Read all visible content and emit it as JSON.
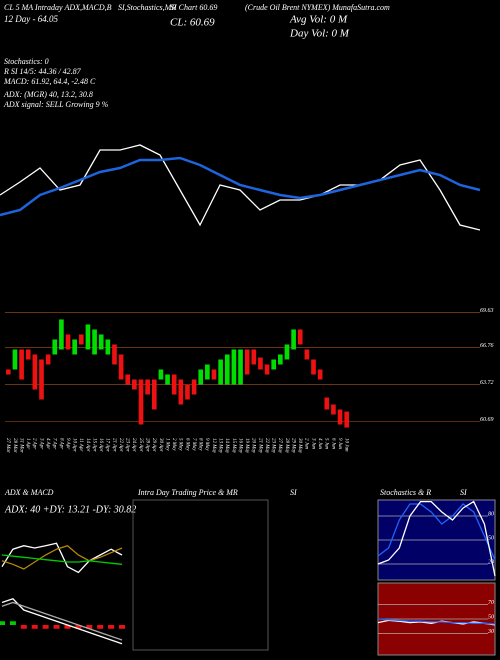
{
  "chart_data": [
    {
      "type": "line",
      "annotations": [
        "CL  5 MA  Intraday  ADX,MACD,B",
        "SI,Stochastics,MR",
        "SI Chart  60.69",
        "(Crude Oil Brent NYMEX) MunafaSutra.com",
        "12 Day  - 64.05",
        "CL: 60.69",
        "Avg Vol: 0   M",
        "Day Vol: 0   M",
        "Stochastics: 0",
        "R       SI 14/5: 44.36  / 42.87",
        "MACD: 61.92, 64.4, -2.48   C",
        "ADX:                (MGR) 40, 13.2, 30.8",
        "ADX  signal: SELL  Growing 9 %"
      ],
      "ylim": [
        0,
        300
      ],
      "series": [
        {
          "color": "#ffffff",
          "values": [
            105,
            118,
            132,
            110,
            115,
            150,
            150,
            155,
            145,
            110,
            75,
            115,
            110,
            90,
            100,
            100,
            105,
            115,
            115,
            120,
            135,
            140,
            110,
            75,
            70
          ]
        },
        {
          "color": "#1e64dc",
          "values": [
            85,
            90,
            105,
            112,
            120,
            128,
            132,
            140,
            140,
            142,
            135,
            125,
            115,
            110,
            105,
            102,
            105,
            110,
            115,
            120,
            125,
            130,
            125,
            115,
            110
          ]
        }
      ]
    },
    {
      "type": "candle",
      "categories": [
        "27 Mar",
        "28 Mar",
        "31 Mar",
        "1 Apr",
        "2 Apr",
        "3 Apr",
        "4 Apr",
        "7 Apr",
        "8 Apr",
        "9 Apr",
        "10 Apr",
        "11 Apr",
        "14 Apr",
        "15 Apr",
        "16 Apr",
        "17 Apr",
        "21 Apr",
        "22 Apr",
        "23 Apr",
        "24 Apr",
        "25 Apr",
        "28 Apr",
        "29 Apr",
        "30 Apr",
        "1 May",
        "2 May",
        "5 May",
        "6 May",
        "7 May",
        "8 May",
        "9 May",
        "12 May",
        "13 May",
        "14 May",
        "15 May",
        "16 May",
        "19 May",
        "20 May",
        "21 May",
        "22 May",
        "23 May",
        "27 May",
        "28 May",
        "29 May",
        "30 May",
        "2 Jun",
        "3 Jun",
        "4 Jun",
        "5 Jun",
        "6 Jun",
        "9 Jun",
        "10 Jun"
      ],
      "open": [
        64.96,
        64.96,
        66.6,
        66.6,
        66.19,
        65.78,
        66.19,
        66.19,
        66.6,
        67.83,
        66.19,
        67.83,
        66.6,
        66.19,
        66.6,
        66.19,
        67.01,
        66.19,
        64.55,
        64.14,
        64.14,
        64.14,
        64.14,
        64.14,
        63.73,
        64.55,
        64.14,
        63.73,
        64.14,
        63.73,
        64.14,
        64.96,
        63.73,
        63.73,
        63.73,
        63.73,
        66.6,
        66.6,
        65.94,
        65.37,
        64.96,
        65.37,
        65.78,
        66.6,
        68.24,
        66.6,
        65.78,
        64.96,
        62.66,
        62.09,
        61.68,
        61.51
      ],
      "close": [
        64.55,
        66.6,
        64.14,
        65.78,
        63.32,
        62.5,
        65.37,
        67.42,
        69.06,
        66.6,
        67.42,
        67.01,
        68.65,
        68.24,
        67.83,
        67.42,
        65.37,
        64.14,
        63.73,
        63.32,
        60.45,
        62.91,
        61.68,
        64.96,
        64.55,
        62.91,
        62.09,
        62.5,
        62.91,
        64.96,
        65.37,
        64.14,
        65.78,
        66.19,
        66.6,
        66.6,
        64.55,
        65.37,
        64.96,
        64.55,
        65.78,
        66.19,
        67.01,
        68.24,
        67.01,
        65.78,
        64.55,
        64.14,
        61.68,
        61.27,
        60.45,
        60.2
      ],
      "up_color": "#00dd00",
      "down_color": "#ee1111",
      "grid_color": "#8b4513",
      "ylim": [
        60.0,
        70.0
      ],
      "yticks": [
        69.63,
        66.76,
        63.72,
        60.69
      ]
    },
    {
      "type": "line",
      "title": "ADX  & MACD",
      "subtitle": "ADX: 40  +DY: 13.21  -DY: 30.82",
      "ylim": [
        0,
        60
      ],
      "series": [
        {
          "color": "#ffffff",
          "values": [
            20,
            35,
            38,
            36,
            38,
            40,
            20,
            15,
            25,
            30,
            35,
            30
          ]
        },
        {
          "color": "#b8860b",
          "values": [
            25,
            22,
            18,
            24,
            30,
            35,
            38,
            30,
            25,
            28,
            32,
            36
          ]
        },
        {
          "color": "#00cc00",
          "values": [
            30,
            29,
            28,
            27,
            26,
            25,
            24,
            24,
            25,
            24,
            23,
            22
          ]
        }
      ]
    },
    {
      "type": "macd",
      "ylim": [
        -4,
        4
      ],
      "hist_up": "#00cc00",
      "hist_down": "#ee1111",
      "histogram": [
        0.5,
        0.5,
        -0.5,
        -0.5,
        -0.5,
        -0.5,
        -0.5,
        -0.5,
        -0.5,
        -0.5,
        -0.5,
        -0.5
      ],
      "series": [
        {
          "color": "#ffffff",
          "values": [
            3,
            3.5,
            2,
            1.5,
            1,
            0.5,
            0,
            -0.5,
            -1,
            -1.5,
            -2,
            -2.5
          ]
        },
        {
          "color": "#aaaaaa",
          "values": [
            2.5,
            3,
            2.5,
            2,
            1.5,
            1,
            0.5,
            0,
            -0.5,
            -1,
            -1.5,
            -2
          ]
        }
      ]
    },
    {
      "type": "empty",
      "title": "Intra  Day Trading Price  & MR",
      "subtitle": "SI",
      "border": "#555555"
    },
    {
      "type": "line",
      "title": "Stochastics & R",
      "subtitle": "SI",
      "background": "#000066",
      "ylim": [
        0,
        100
      ],
      "yticks": [
        20,
        50,
        80
      ],
      "series": [
        {
          "color": "#1e64ff",
          "values": [
            30,
            40,
            75,
            95,
            95,
            85,
            70,
            80,
            95,
            85,
            55,
            25
          ]
        },
        {
          "color": "#ffffff",
          "values": [
            20,
            25,
            40,
            80,
            98,
            98,
            85,
            75,
            90,
            98,
            70,
            5
          ]
        }
      ]
    },
    {
      "type": "line",
      "background": "#8b0000",
      "ylim": [
        0,
        100
      ],
      "yticks": [
        30,
        50,
        70
      ],
      "series": [
        {
          "color": "#ffffff",
          "values": [
            45,
            48,
            47,
            45,
            46,
            44,
            47,
            45,
            43,
            46,
            44,
            42
          ]
        },
        {
          "color": "#1e64ff",
          "values": [
            50,
            49,
            48,
            47,
            47,
            46,
            46,
            45,
            45,
            44,
            44,
            43
          ]
        }
      ]
    }
  ]
}
